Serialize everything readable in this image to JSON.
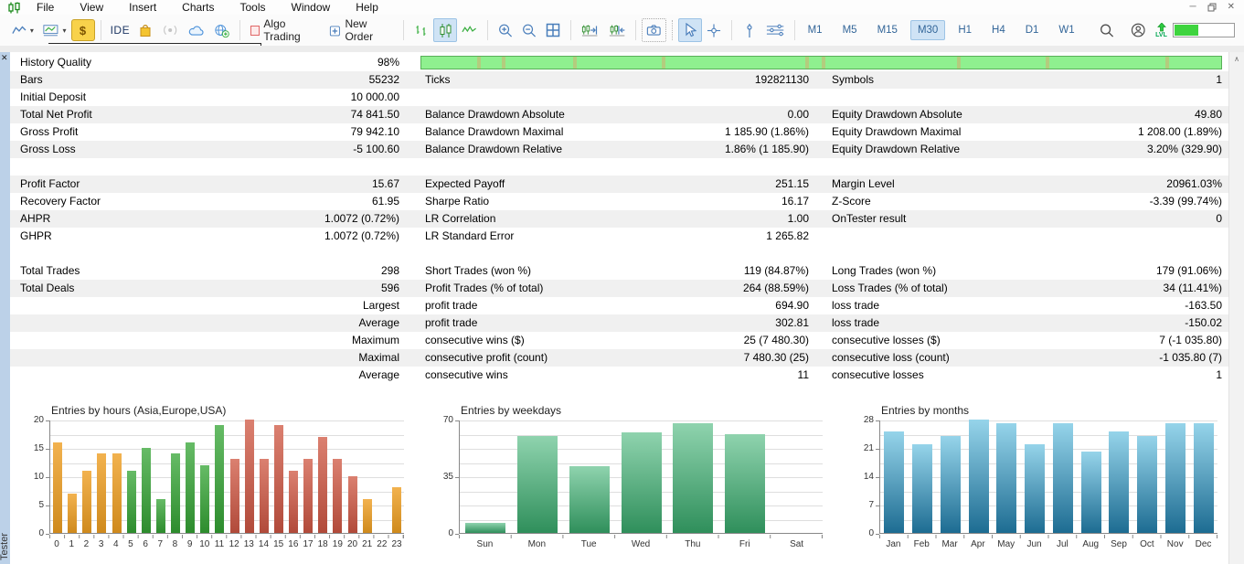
{
  "window": {
    "menu": [
      "File",
      "View",
      "Insert",
      "Charts",
      "Tools",
      "Window",
      "Help"
    ]
  },
  "toolbar": {
    "ide_label": "IDE",
    "algo_trading_label": "Algo Trading",
    "new_order_label": "New Order",
    "timeframes": [
      "M1",
      "M5",
      "M15",
      "M30",
      "H1",
      "H4",
      "D1",
      "W1"
    ],
    "active_timeframe": "M30",
    "lvl_label": "LVL",
    "progress_percent": 40
  },
  "tester": {
    "panel_label": "Tester",
    "history_bar_segments": [
      7,
      10,
      19,
      30,
      48,
      50,
      67,
      78,
      93
    ],
    "blocks": [
      {
        "rows": [
          {
            "c": [
              "History Quality",
              "98%",
              "",
              "",
              "",
              ""
            ],
            "shade": false,
            "quality_bar": true
          },
          {
            "c": [
              "Bars",
              "55232",
              "Ticks",
              "192821130",
              "Symbols",
              "1"
            ],
            "shade": true
          },
          {
            "c": [
              "Initial Deposit",
              "10 000.00",
              "",
              "",
              "",
              ""
            ],
            "shade": false
          },
          {
            "c": [
              "Total Net Profit",
              "74 841.50",
              "Balance Drawdown Absolute",
              "0.00",
              "Equity Drawdown Absolute",
              "49.80"
            ],
            "shade": true
          },
          {
            "c": [
              "Gross Profit",
              "79 942.10",
              "Balance Drawdown Maximal",
              "1 185.90 (1.86%)",
              "Equity Drawdown Maximal",
              "1 208.00 (1.89%)"
            ],
            "shade": false
          },
          {
            "c": [
              "Gross Loss",
              "-5 100.60",
              "Balance Drawdown Relative",
              "1.86% (1 185.90)",
              "Equity Drawdown Relative",
              "3.20% (329.90)"
            ],
            "shade": true
          }
        ]
      },
      {
        "rows": [
          {
            "c": [
              "Profit Factor",
              "15.67",
              "Expected Payoff",
              "251.15",
              "Margin Level",
              "20961.03%"
            ],
            "shade": true
          },
          {
            "c": [
              "Recovery Factor",
              "61.95",
              "Sharpe Ratio",
              "16.17",
              "Z-Score",
              "-3.39 (99.74%)"
            ],
            "shade": false
          },
          {
            "c": [
              "AHPR",
              "1.0072 (0.72%)",
              "LR Correlation",
              "1.00",
              "OnTester result",
              "0"
            ],
            "shade": true
          },
          {
            "c": [
              "GHPR",
              "1.0072 (0.72%)",
              "LR Standard Error",
              "1 265.82",
              "",
              ""
            ],
            "shade": false
          }
        ]
      },
      {
        "rows": [
          {
            "c": [
              "Total Trades",
              "298",
              "Short Trades (won %)",
              "119 (84.87%)",
              "Long Trades (won %)",
              "179 (91.06%)"
            ],
            "shade": false
          },
          {
            "c": [
              "Total Deals",
              "596",
              "Profit Trades (% of total)",
              "264 (88.59%)",
              "Loss Trades (% of total)",
              "34 (11.41%)"
            ],
            "shade": true
          },
          {
            "c": [
              "",
              "Largest",
              "profit trade",
              "694.90",
              "loss trade",
              "-163.50"
            ],
            "shade": false
          },
          {
            "c": [
              "",
              "Average",
              "profit trade",
              "302.81",
              "loss trade",
              "-150.02"
            ],
            "shade": true
          },
          {
            "c": [
              "",
              "Maximum",
              "consecutive wins ($)",
              "25 (7 480.30)",
              "consecutive losses ($)",
              "7 (-1 035.80)"
            ],
            "shade": false
          },
          {
            "c": [
              "",
              "Maximal",
              "consecutive profit (count)",
              "7 480.30 (25)",
              "consecutive loss (count)",
              "-1 035.80 (7)"
            ],
            "shade": true
          },
          {
            "c": [
              "",
              "Average",
              "consecutive wins",
              "11",
              "consecutive losses",
              "1"
            ],
            "shade": false
          }
        ]
      }
    ]
  },
  "chart_data": [
    {
      "type": "bar",
      "id": "entries-by-hours",
      "title": "Entries by hours (Asia,Europe,USA)",
      "categories": [
        "0",
        "1",
        "2",
        "3",
        "4",
        "5",
        "6",
        "7",
        "8",
        "9",
        "10",
        "11",
        "12",
        "13",
        "14",
        "15",
        "16",
        "17",
        "18",
        "19",
        "20",
        "21",
        "22",
        "23"
      ],
      "values": [
        16,
        7,
        11,
        14,
        14,
        11,
        15,
        6,
        14,
        16,
        12,
        19,
        13,
        20,
        13,
        19,
        11,
        13,
        17,
        13,
        10,
        6,
        0,
        8
      ],
      "bar_groups": [
        "asia",
        "asia",
        "asia",
        "asia",
        "asia",
        "europe",
        "europe",
        "europe",
        "europe",
        "europe",
        "europe",
        "europe",
        "usa",
        "usa",
        "usa",
        "usa",
        "usa",
        "usa",
        "usa",
        "usa",
        "usa",
        "asia",
        "asia",
        "asia"
      ],
      "colors": {
        "asia": [
          "#f2b24f",
          "#cf8a1d"
        ],
        "europe": [
          "#66bb66",
          "#2d8c2d"
        ],
        "usa": [
          "#db8070",
          "#b14a3a"
        ]
      },
      "ylim": [
        0,
        20
      ],
      "yticks": [
        0,
        5,
        10,
        15,
        20
      ],
      "grid_divisions": 8,
      "xlabel": "",
      "ylabel": "",
      "legend": "none",
      "grid": true
    },
    {
      "type": "bar",
      "id": "entries-by-weekdays",
      "title": "Entries by weekdays",
      "categories": [
        "Sun",
        "Mon",
        "Tue",
        "Wed",
        "Thu",
        "Fri",
        "Sat"
      ],
      "values": [
        6,
        60,
        41,
        62,
        68,
        61,
        0
      ],
      "colors": {
        "default": [
          "#8fd3ae",
          "#2f8f5b"
        ]
      },
      "ylim": [
        0,
        70
      ],
      "yticks": [
        0,
        35,
        70
      ],
      "grid_divisions": 8,
      "xlabel": "",
      "ylabel": "",
      "legend": "none",
      "grid": true
    },
    {
      "type": "bar",
      "id": "entries-by-months",
      "title": "Entries by months",
      "categories": [
        "Jan",
        "Feb",
        "Mar",
        "Apr",
        "May",
        "Jun",
        "Jul",
        "Aug",
        "Sep",
        "Oct",
        "Nov",
        "Dec"
      ],
      "values": [
        25,
        22,
        24,
        28,
        27,
        22,
        27,
        20,
        25,
        24,
        27,
        27
      ],
      "colors": {
        "default": [
          "#96d4ea",
          "#1d6c92"
        ]
      },
      "ylim": [
        0,
        28
      ],
      "yticks": [
        0,
        7,
        14,
        21,
        28
      ],
      "grid_divisions": 8,
      "xlabel": "",
      "ylabel": "",
      "legend": "none",
      "grid": true
    }
  ]
}
